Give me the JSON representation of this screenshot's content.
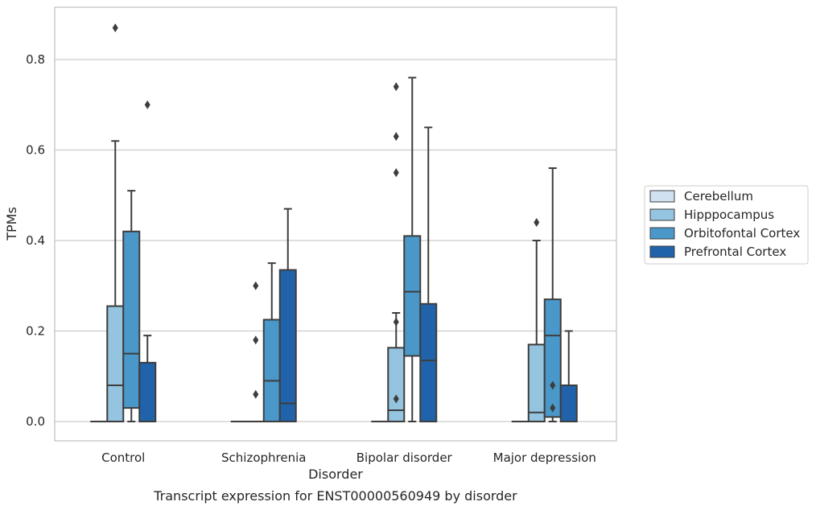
{
  "chart_data": {
    "type": "box",
    "caption": "Transcript expression for ENST00000560949 by disorder",
    "xlabel": "Disorder",
    "ylabel": "TPMs",
    "ylim": [
      -0.04,
      0.92
    ],
    "yticks": [
      0.0,
      0.2,
      0.4,
      0.6,
      0.8
    ],
    "ytick_labels": [
      "0.0",
      "0.2",
      "0.4",
      "0.6",
      "0.8"
    ],
    "grid": true,
    "legend_position": "right",
    "categories": [
      "Control",
      "Schizophrenia",
      "Bipolar disorder",
      "Major depression"
    ],
    "series": [
      {
        "name": "Cerebellum",
        "color": "#d0e1f2",
        "boxes": [
          {
            "min": 0.0,
            "q1": 0.0,
            "median": 0.0,
            "q3": 0.0,
            "max": 0.0,
            "outliers": []
          },
          {
            "min": 0.0,
            "q1": 0.0,
            "median": 0.0,
            "q3": 0.0,
            "max": 0.0,
            "outliers": []
          },
          {
            "min": 0.0,
            "q1": 0.0,
            "median": 0.0,
            "q3": 0.0,
            "max": 0.0,
            "outliers": []
          },
          {
            "min": 0.0,
            "q1": 0.0,
            "median": 0.0,
            "q3": 0.0,
            "max": 0.0,
            "outliers": []
          }
        ]
      },
      {
        "name": "Hipppocampus",
        "color": "#94c4df",
        "boxes": [
          {
            "min": 0.0,
            "q1": 0.0,
            "median": 0.08,
            "q3": 0.255,
            "max": 0.62,
            "outliers": [
              0.87
            ]
          },
          {
            "min": 0.0,
            "q1": 0.0,
            "median": 0.0,
            "q3": 0.0,
            "max": 0.0,
            "outliers": [
              0.3,
              0.18,
              0.06
            ]
          },
          {
            "min": 0.0,
            "q1": 0.0,
            "median": 0.025,
            "q3": 0.163,
            "max": 0.24,
            "outliers": [
              0.74,
              0.63,
              0.55,
              0.22,
              0.05
            ]
          },
          {
            "min": 0.0,
            "q1": 0.0,
            "median": 0.02,
            "q3": 0.17,
            "max": 0.4,
            "outliers": [
              0.44
            ]
          }
        ]
      },
      {
        "name": "Orbitofontal Cortex",
        "color": "#4a98c9",
        "boxes": [
          {
            "min": 0.0,
            "q1": 0.03,
            "median": 0.15,
            "q3": 0.42,
            "max": 0.51,
            "outliers": []
          },
          {
            "min": 0.0,
            "q1": 0.0,
            "median": 0.09,
            "q3": 0.225,
            "max": 0.35,
            "outliers": []
          },
          {
            "min": 0.0,
            "q1": 0.145,
            "median": 0.287,
            "q3": 0.41,
            "max": 0.76,
            "outliers": []
          },
          {
            "min": 0.0,
            "q1": 0.01,
            "median": 0.19,
            "q3": 0.27,
            "max": 0.56,
            "outliers": [
              0.08,
              0.03
            ]
          }
        ]
      },
      {
        "name": "Prefrontal Cortex",
        "color": "#2163aa",
        "boxes": [
          {
            "min": 0.0,
            "q1": 0.0,
            "median": 0.0,
            "q3": 0.13,
            "max": 0.19,
            "outliers": [
              0.7
            ]
          },
          {
            "min": 0.0,
            "q1": 0.0,
            "median": 0.04,
            "q3": 0.335,
            "max": 0.47,
            "outliers": []
          },
          {
            "min": 0.0,
            "q1": 0.0,
            "median": 0.135,
            "q3": 0.26,
            "max": 0.65,
            "outliers": []
          },
          {
            "min": 0.0,
            "q1": 0.0,
            "median": 0.0,
            "q3": 0.08,
            "max": 0.2,
            "outliers": []
          }
        ]
      }
    ]
  }
}
